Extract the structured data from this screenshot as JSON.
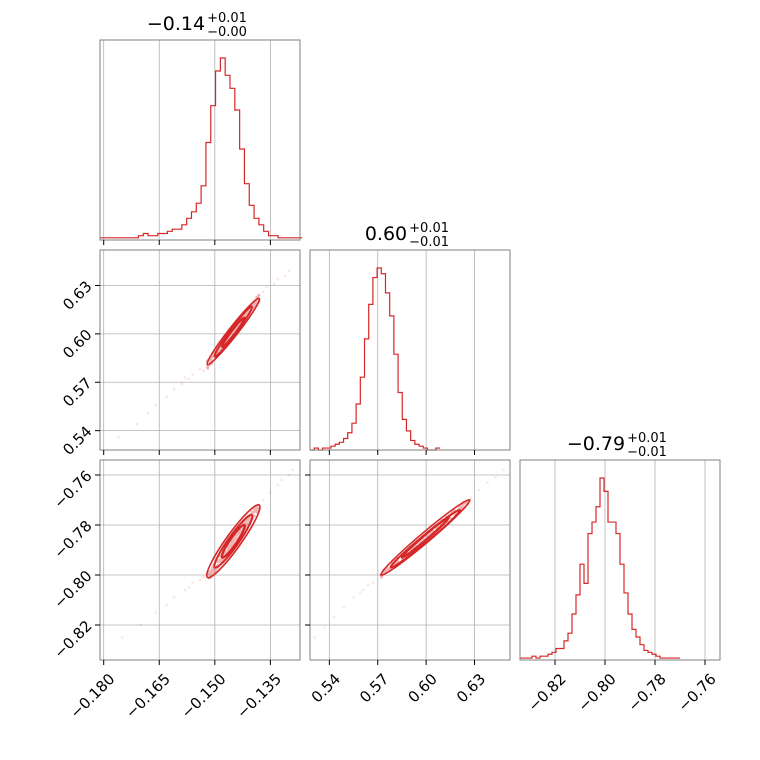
{
  "chart_data": {
    "type": "corner",
    "color": "#d62728",
    "parameters": [
      {
        "title_main": "−0.14",
        "title_plus": "+0.01",
        "title_minus": "−0.00",
        "lim": [
          -0.181,
          -0.127
        ],
        "ticks": [
          -0.18,
          -0.165,
          -0.15,
          -0.135
        ],
        "ticklabels": [
          "−0.180",
          "−0.165",
          "−0.150",
          "−0.135"
        ]
      },
      {
        "title_main": "0.60",
        "title_plus": "+0.01",
        "title_minus": "−0.01",
        "lim": [
          0.528,
          0.652
        ],
        "ticks": [
          0.54,
          0.57,
          0.6,
          0.63
        ],
        "ticklabels": [
          "0.54",
          "0.57",
          "0.60",
          "0.63"
        ]
      },
      {
        "title_main": "−0.79",
        "title_plus": "+0.01",
        "title_minus": "−0.01",
        "lim": [
          -0.834,
          -0.754
        ],
        "ticks": [
          -0.82,
          -0.8,
          -0.78,
          -0.76
        ],
        "ticklabels": [
          "−0.82",
          "−0.80",
          "−0.78",
          "−0.76"
        ]
      }
    ],
    "histograms": [
      {
        "bin_start": -0.181,
        "bin_width": 0.0013,
        "counts": [
          1,
          1,
          1,
          1,
          1,
          1,
          1,
          1,
          2,
          3,
          2,
          2,
          3,
          3,
          4,
          5,
          5,
          7,
          10,
          13,
          17,
          25,
          45,
          62,
          78,
          84,
          76,
          70,
          60,
          42,
          26,
          16,
          10,
          7,
          4,
          2,
          2,
          1,
          1,
          1,
          1,
          1
        ]
      },
      {
        "bin_start": 0.528,
        "bin_width": 0.0026,
        "counts": [
          0,
          1,
          0,
          1,
          1,
          2,
          3,
          4,
          6,
          9,
          14,
          24,
          38,
          58,
          76,
          90,
          95,
          92,
          82,
          70,
          50,
          30,
          16,
          10,
          5,
          3,
          2,
          1,
          0,
          0,
          1
        ]
      },
      {
        "bin_start": -0.834,
        "bin_width": 0.0016,
        "counts": [
          1,
          1,
          1,
          2,
          1,
          2,
          2,
          3,
          4,
          6,
          6,
          10,
          14,
          24,
          34,
          50,
          40,
          66,
          72,
          80,
          95,
          88,
          72,
          72,
          66,
          50,
          35,
          24,
          16,
          12,
          8,
          5,
          4,
          3,
          2,
          1,
          1,
          1,
          1,
          1
        ]
      }
    ],
    "pairs": [
      {
        "i": 0,
        "j": 1,
        "scatter": [
          [
            -0.176,
            0.536
          ],
          [
            -0.171,
            0.544
          ],
          [
            -0.168,
            0.551
          ],
          [
            -0.166,
            0.556
          ],
          [
            -0.163,
            0.561
          ],
          [
            -0.161,
            0.566
          ],
          [
            -0.159,
            0.569
          ],
          [
            -0.157,
            0.572
          ],
          [
            -0.156,
            0.575
          ],
          [
            -0.154,
            0.578
          ],
          [
            -0.152,
            0.581
          ],
          [
            -0.137,
            0.626
          ],
          [
            -0.136,
            0.629
          ],
          [
            -0.134,
            0.631
          ],
          [
            -0.133,
            0.634
          ],
          [
            -0.131,
            0.636
          ],
          [
            -0.13,
            0.639
          ],
          [
            -0.158,
            0.573
          ],
          [
            -0.153,
            0.577
          ],
          [
            -0.139,
            0.623
          ]
        ],
        "spread": 0.0025,
        "contours": [
          {
            "from": [
              -0.152,
              0.581
            ],
            "to": [
              -0.138,
              0.622
            ],
            "half_width": 0.0028
          },
          {
            "from": [
              -0.15,
              0.586
            ],
            "to": [
              -0.14,
              0.617
            ],
            "half_width": 0.002
          },
          {
            "from": [
              -0.148,
              0.592
            ],
            "to": [
              -0.142,
              0.61
            ],
            "half_width": 0.0013
          }
        ]
      },
      {
        "i": 0,
        "j": 2,
        "scatter": [
          [
            -0.175,
            -0.825
          ],
          [
            -0.17,
            -0.82
          ],
          [
            -0.166,
            -0.815
          ],
          [
            -0.163,
            -0.812
          ],
          [
            -0.161,
            -0.809
          ],
          [
            -0.158,
            -0.806
          ],
          [
            -0.156,
            -0.803
          ],
          [
            -0.154,
            -0.802
          ],
          [
            -0.152,
            -0.8
          ],
          [
            -0.137,
            -0.77
          ],
          [
            -0.135,
            -0.767
          ],
          [
            -0.133,
            -0.764
          ],
          [
            -0.132,
            -0.762
          ],
          [
            -0.13,
            -0.76
          ],
          [
            -0.129,
            -0.758
          ],
          [
            -0.157,
            -0.805
          ],
          [
            -0.153,
            -0.801
          ],
          [
            -0.139,
            -0.773
          ]
        ],
        "spread": 0.0018,
        "contours": [
          {
            "from": [
              -0.152,
              -0.801
            ],
            "to": [
              -0.138,
              -0.772
            ],
            "half_width": 0.003
          },
          {
            "from": [
              -0.15,
              -0.797
            ],
            "to": [
              -0.14,
              -0.776
            ],
            "half_width": 0.0021
          },
          {
            "from": [
              -0.148,
              -0.793
            ],
            "to": [
              -0.142,
              -0.78
            ],
            "half_width": 0.0014
          }
        ]
      },
      {
        "i": 1,
        "j": 2,
        "scatter": [
          [
            0.531,
            -0.825
          ],
          [
            0.537,
            -0.821
          ],
          [
            0.543,
            -0.817
          ],
          [
            0.549,
            -0.813
          ],
          [
            0.555,
            -0.809
          ],
          [
            0.561,
            -0.806
          ],
          [
            0.567,
            -0.803
          ],
          [
            0.572,
            -0.8
          ],
          [
            0.628,
            -0.769
          ],
          [
            0.633,
            -0.766
          ],
          [
            0.638,
            -0.763
          ],
          [
            0.643,
            -0.761
          ],
          [
            0.648,
            -0.758
          ],
          [
            0.559,
            -0.807
          ],
          [
            0.564,
            -0.804
          ],
          [
            0.625,
            -0.771
          ]
        ],
        "spread": 0.0012,
        "contours": [
          {
            "from": [
              0.572,
              -0.8
            ],
            "to": [
              0.627,
              -0.77
            ],
            "half_width": 0.002
          },
          {
            "from": [
              0.578,
              -0.797
            ],
            "to": [
              0.621,
              -0.774
            ],
            "half_width": 0.0014
          },
          {
            "from": [
              0.585,
              -0.793
            ],
            "to": [
              0.614,
              -0.777
            ],
            "half_width": 0.0009
          }
        ]
      }
    ]
  }
}
